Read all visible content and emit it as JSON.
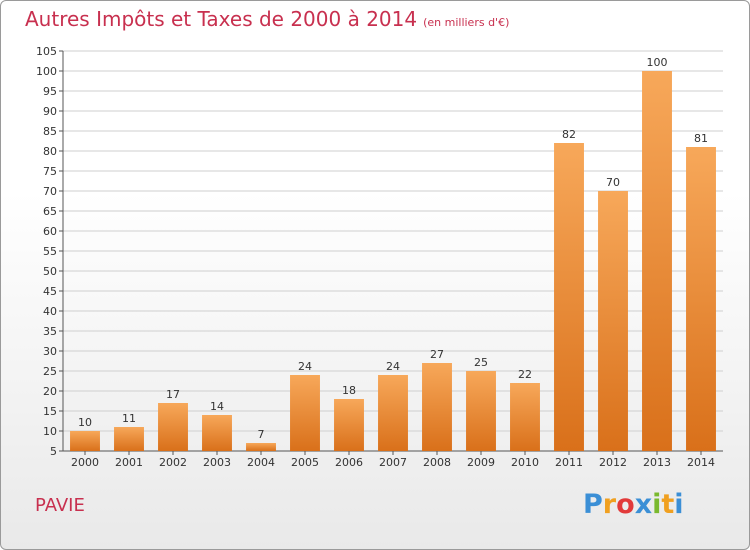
{
  "header": {
    "title": "Autres Impôts et Taxes de 2000 à 2014",
    "unit": "(en milliers d'€)"
  },
  "footer": {
    "place": "PAVIE",
    "logo_letters": [
      "P",
      "r",
      "o",
      "x",
      "i",
      "t",
      "i"
    ],
    "logo_colors": [
      "#3b8fd6",
      "#f0a020",
      "#e23a3a",
      "#3b8fd6",
      "#7ab92e",
      "#f0a020",
      "#3b8fd6"
    ]
  },
  "colors": {
    "bar": "#f08a28",
    "bar_light": "#f7a85a",
    "bar_dark": "#d9701a",
    "grid": "#cfcfcf",
    "title": "#c8304f"
  },
  "chart_data": {
    "type": "bar",
    "title": "Autres Impôts et Taxes de 2000 à 2014",
    "subtitle": "(en milliers d'€)",
    "xlabel": "",
    "ylabel": "",
    "categories": [
      "2000",
      "2001",
      "2002",
      "2003",
      "2004",
      "2005",
      "2006",
      "2007",
      "2008",
      "2009",
      "2010",
      "2011",
      "2012",
      "2013",
      "2014"
    ],
    "values": [
      10,
      11,
      17,
      14,
      7,
      24,
      18,
      24,
      27,
      25,
      22,
      82,
      70,
      100,
      81
    ],
    "ylim": [
      5,
      105
    ],
    "yticks": [
      5,
      10,
      15,
      20,
      25,
      30,
      35,
      40,
      45,
      50,
      55,
      60,
      65,
      70,
      75,
      80,
      85,
      90,
      95,
      100,
      105
    ],
    "grid": true,
    "data_labels": true
  }
}
